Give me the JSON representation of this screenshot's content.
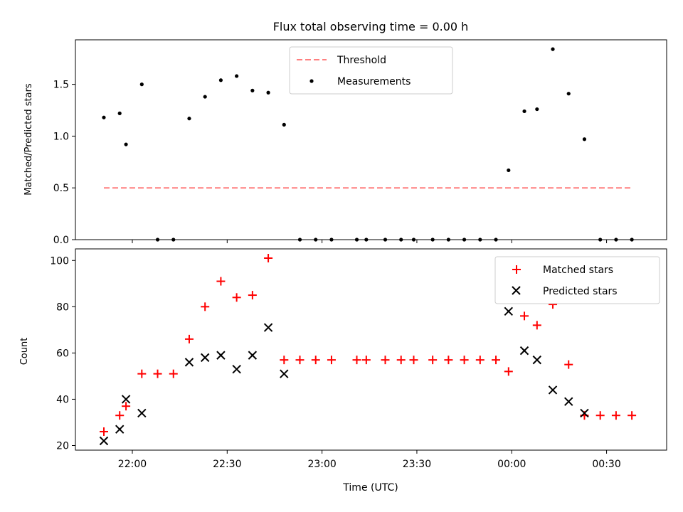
{
  "title": "Flux total observing time = 0.00 h",
  "xlabel": "Time (UTC)",
  "x_tick_labels": [
    "22:00",
    "22:30",
    "23:00",
    "23:30",
    "00:00",
    "00:30"
  ],
  "legend_top": {
    "threshold": "Threshold",
    "measurements": "Measurements"
  },
  "legend_bottom": {
    "matched": "Matched stars",
    "predicted": "Predicted stars"
  },
  "colors": {
    "threshold": "#ff7f7f",
    "matched": "#ff0000",
    "predicted": "#000000",
    "measurements": "#000000"
  },
  "chart_data": [
    {
      "type": "scatter",
      "title": "Flux total observing time = 0.00 h",
      "xlabel": "",
      "ylabel": "Matched/Predicted stars",
      "ylim": [
        0,
        1.93
      ],
      "yticks": [
        0.0,
        0.5,
        1.0,
        1.5
      ],
      "ytick_labels": [
        "0.0",
        "0.5",
        "1.0",
        "1.5"
      ],
      "legend_position": "top-center",
      "threshold": {
        "name": "Threshold",
        "value": 0.5,
        "x_range": [
          "21:51",
          "00:38"
        ]
      },
      "series": [
        {
          "name": "Measurements",
          "points": [
            [
              "21:51",
              1.18
            ],
            [
              "21:56",
              1.22
            ],
            [
              "21:58",
              0.92
            ],
            [
              "22:03",
              1.5
            ],
            [
              "22:08",
              0.0
            ],
            [
              "22:13",
              0.0
            ],
            [
              "22:18",
              1.17
            ],
            [
              "22:23",
              1.38
            ],
            [
              "22:28",
              1.54
            ],
            [
              "22:33",
              1.58
            ],
            [
              "22:38",
              1.44
            ],
            [
              "22:43",
              1.42
            ],
            [
              "22:48",
              1.11
            ],
            [
              "22:53",
              0.0
            ],
            [
              "22:58",
              0.0
            ],
            [
              "23:03",
              0.0
            ],
            [
              "23:11",
              0.0
            ],
            [
              "23:14",
              0.0
            ],
            [
              "23:20",
              0.0
            ],
            [
              "23:25",
              0.0
            ],
            [
              "23:29",
              0.0
            ],
            [
              "23:35",
              0.0
            ],
            [
              "23:40",
              0.0
            ],
            [
              "23:45",
              0.0
            ],
            [
              "23:50",
              0.0
            ],
            [
              "23:55",
              0.0
            ],
            [
              "23:59",
              0.67
            ],
            [
              "00:04",
              1.24
            ],
            [
              "00:08",
              1.26
            ],
            [
              "00:13",
              1.84
            ],
            [
              "00:18",
              1.41
            ],
            [
              "00:23",
              0.97
            ],
            [
              "00:28",
              0.0
            ],
            [
              "00:33",
              0.0
            ],
            [
              "00:38",
              0.0
            ]
          ]
        }
      ]
    },
    {
      "type": "scatter",
      "xlabel": "Time (UTC)",
      "ylabel": "Count",
      "ylim": [
        18,
        105
      ],
      "yticks": [
        20,
        40,
        60,
        80,
        100
      ],
      "ytick_labels": [
        "20",
        "40",
        "60",
        "80",
        "100"
      ],
      "xlim": [
        "21:42",
        "00:49"
      ],
      "legend_position": "top-right",
      "series": [
        {
          "name": "Matched stars",
          "marker": "+",
          "points": [
            [
              "21:51",
              26
            ],
            [
              "21:56",
              33
            ],
            [
              "21:58",
              37
            ],
            [
              "22:03",
              51
            ],
            [
              "22:08",
              51
            ],
            [
              "22:13",
              51
            ],
            [
              "22:18",
              66
            ],
            [
              "22:23",
              80
            ],
            [
              "22:28",
              91
            ],
            [
              "22:33",
              84
            ],
            [
              "22:38",
              85
            ],
            [
              "22:43",
              101
            ],
            [
              "22:48",
              57
            ],
            [
              "22:53",
              57
            ],
            [
              "22:58",
              57
            ],
            [
              "23:03",
              57
            ],
            [
              "23:11",
              57
            ],
            [
              "23:14",
              57
            ],
            [
              "23:20",
              57
            ],
            [
              "23:25",
              57
            ],
            [
              "23:29",
              57
            ],
            [
              "23:35",
              57
            ],
            [
              "23:40",
              57
            ],
            [
              "23:45",
              57
            ],
            [
              "23:50",
              57
            ],
            [
              "23:55",
              57
            ],
            [
              "23:59",
              52
            ],
            [
              "00:04",
              76
            ],
            [
              "00:08",
              72
            ],
            [
              "00:13",
              81
            ],
            [
              "00:18",
              55
            ],
            [
              "00:23",
              33
            ],
            [
              "00:28",
              33
            ],
            [
              "00:33",
              33
            ],
            [
              "00:38",
              33
            ]
          ]
        },
        {
          "name": "Predicted stars",
          "marker": "x",
          "points": [
            [
              "21:51",
              22
            ],
            [
              "21:56",
              27
            ],
            [
              "21:58",
              40
            ],
            [
              "22:03",
              34
            ],
            [
              "22:18",
              56
            ],
            [
              "22:23",
              58
            ],
            [
              "22:28",
              59
            ],
            [
              "22:33",
              53
            ],
            [
              "22:38",
              59
            ],
            [
              "22:43",
              71
            ],
            [
              "22:48",
              51
            ],
            [
              "23:59",
              78
            ],
            [
              "00:04",
              61
            ],
            [
              "00:08",
              57
            ],
            [
              "00:13",
              44
            ],
            [
              "00:18",
              39
            ],
            [
              "00:23",
              34
            ]
          ]
        }
      ]
    }
  ]
}
